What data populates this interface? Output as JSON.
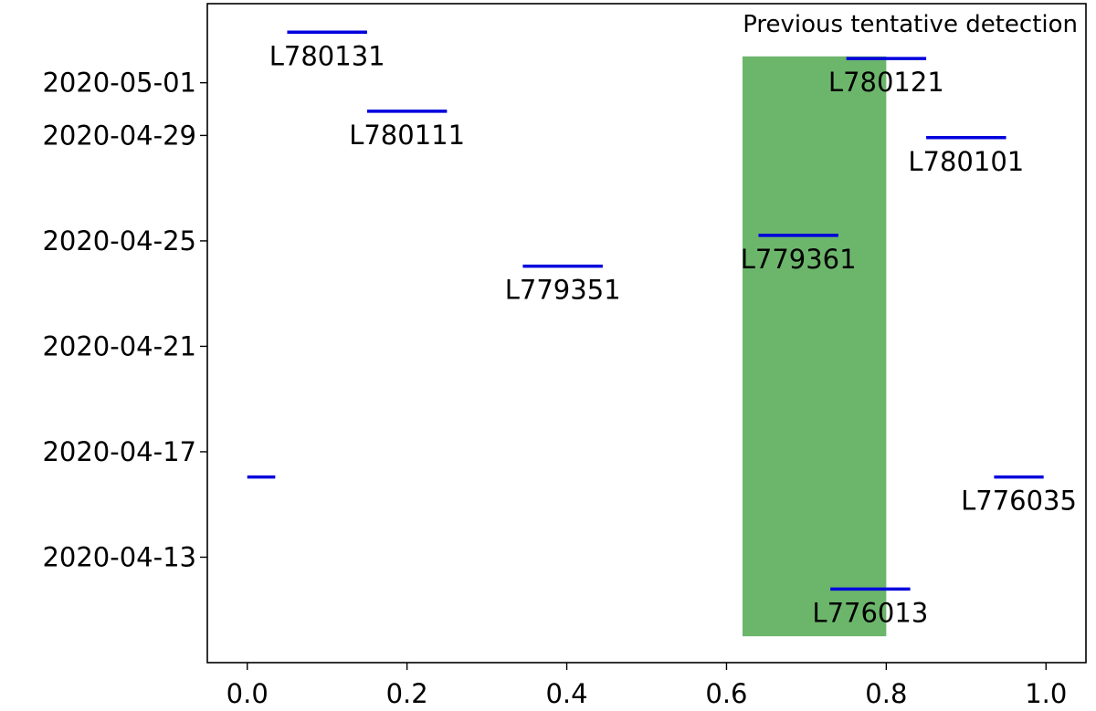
{
  "chart_data": {
    "type": "scatter",
    "title": "",
    "xlabel": "",
    "ylabel": "",
    "xlim": [
      -0.05,
      1.05
    ],
    "ylim": [
      "2020-04-09",
      "2020-05-04"
    ],
    "x_ticks": [
      "0.0",
      "0.2",
      "0.4",
      "0.6",
      "0.8",
      "1.0"
    ],
    "y_ticks": [
      "2020-04-13",
      "2020-04-17",
      "2020-04-21",
      "2020-04-25",
      "2020-04-29",
      "2020-05-01"
    ],
    "grid": false,
    "highlight": {
      "label": "Previous tentative detection",
      "x_range": [
        0.62,
        0.8
      ],
      "y_range": [
        "2020-04-10",
        "2020-05-02"
      ],
      "color": "#6cb66c"
    },
    "segment_color": "#0000dd",
    "series": [
      {
        "label": "L776013",
        "x": [
          0.73,
          0.83
        ],
        "date": "2020-04-11 19:00"
      },
      {
        "label": "",
        "x": [
          0.0,
          0.035
        ],
        "date": "2020-04-16 01:00"
      },
      {
        "label": "L776035",
        "x": [
          0.935,
          0.997
        ],
        "date": "2020-04-16 01:00"
      },
      {
        "label": "L779351",
        "x": [
          0.345,
          0.445
        ],
        "date": "2020-04-24 01:00"
      },
      {
        "label": "L779361",
        "x": [
          0.64,
          0.74
        ],
        "date": "2020-04-25 05:00"
      },
      {
        "label": "L780101",
        "x": [
          0.85,
          0.95
        ],
        "date": "2020-04-28 22:00"
      },
      {
        "label": "L780111",
        "x": [
          0.15,
          0.25
        ],
        "date": "2020-04-29 22:00"
      },
      {
        "label": "L780121",
        "x": [
          0.75,
          0.85
        ],
        "date": "2020-05-01 22:00"
      },
      {
        "label": "L780131",
        "x": [
          0.05,
          0.15
        ],
        "date": "2020-05-02 22:00"
      }
    ]
  }
}
